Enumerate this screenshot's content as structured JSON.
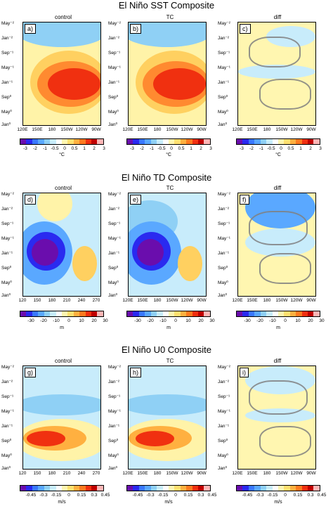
{
  "rows": [
    {
      "title": "El Niño SST Composite",
      "panels": [
        {
          "label": "control",
          "tag": "a)"
        },
        {
          "label": "TC",
          "tag": "b)"
        },
        {
          "label": "diff",
          "tag": "c)"
        }
      ],
      "xticks": [
        "120E",
        "150E",
        "180",
        "150W",
        "120W",
        "90W"
      ],
      "cbar": [
        "-3",
        "-2",
        "-1",
        "-0.5",
        "0",
        "0.5",
        "1",
        "2",
        "3"
      ],
      "unit": "°C"
    },
    {
      "title": "El Niño TD Composite",
      "panels": [
        {
          "label": "control",
          "tag": "d)"
        },
        {
          "label": "TC",
          "tag": "e)"
        },
        {
          "label": "diff",
          "tag": "f)"
        }
      ],
      "xticks_a": [
        "120",
        "150",
        "180",
        "210",
        "240",
        "270"
      ],
      "xticks": [
        "120E",
        "150E",
        "180",
        "150W",
        "120W",
        "90W"
      ],
      "cbar": [
        "-30",
        "-20",
        "-10",
        "0",
        "10",
        "20",
        "30"
      ],
      "unit": "m"
    },
    {
      "title": "El Niño U0 Composite",
      "panels": [
        {
          "label": "control",
          "tag": "g)"
        },
        {
          "label": "TC",
          "tag": "h)"
        },
        {
          "label": "diff",
          "tag": "i)"
        }
      ],
      "xticks_a": [
        "120",
        "150",
        "180",
        "210",
        "240",
        "270"
      ],
      "xticks": [
        "120E",
        "150E",
        "180",
        "150W",
        "120W",
        "90W"
      ],
      "cbar": [
        "-0.45",
        "-0.3",
        "-0.15",
        "0",
        "0.15",
        "0.3",
        "0.45"
      ],
      "unit": "m/s"
    }
  ],
  "yticks": [
    "May⁻²",
    "Jan⁻²",
    "Sep⁻¹",
    "May⁻¹",
    "Jan⁻¹",
    "Sep⁰",
    "May⁰",
    "Jan⁰"
  ],
  "colors": [
    "#6a0dad",
    "#2a2af0",
    "#3a78ff",
    "#5aa8ff",
    "#8fd0f5",
    "#c8ecfb",
    "#ffffff",
    "#fff6b0",
    "#ffe070",
    "#ffb040",
    "#ff7a20",
    "#f03010",
    "#c00000",
    "#ffb6b6"
  ]
}
